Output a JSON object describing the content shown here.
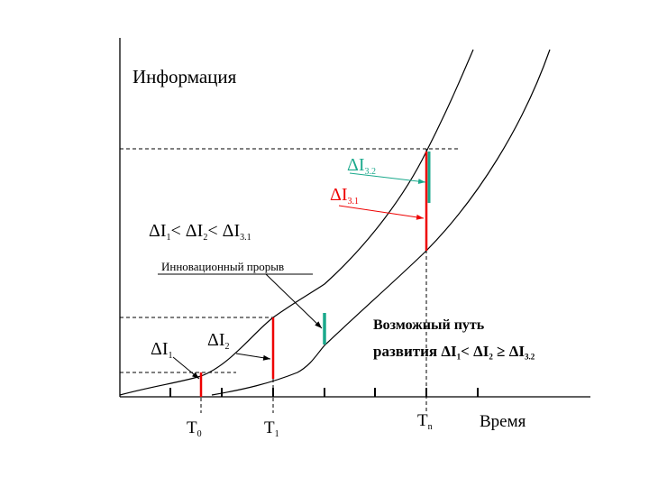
{
  "axes": {
    "y_label": "Информация",
    "x_label": "Время"
  },
  "time_marks": [
    [
      "T",
      "0"
    ],
    [
      "T",
      "1"
    ],
    [
      "T",
      "n"
    ]
  ],
  "increments": {
    "d1": [
      "ΔI",
      "1"
    ],
    "d2": [
      "ΔI",
      "2"
    ],
    "d32": [
      "ΔI",
      "3.2"
    ],
    "d31": [
      "ΔI",
      "3.1"
    ]
  },
  "formula": [
    "ΔI",
    "1",
    "< ΔI",
    "2",
    "< ΔI",
    "3.1"
  ],
  "breakthrough": "Инновационный прорыв",
  "possible_path": {
    "line1": "Возможный путь",
    "line2": [
      "развития ΔI",
      "1",
      "< ΔI",
      "2",
      " ≥ ΔI",
      "3.2"
    ]
  }
}
